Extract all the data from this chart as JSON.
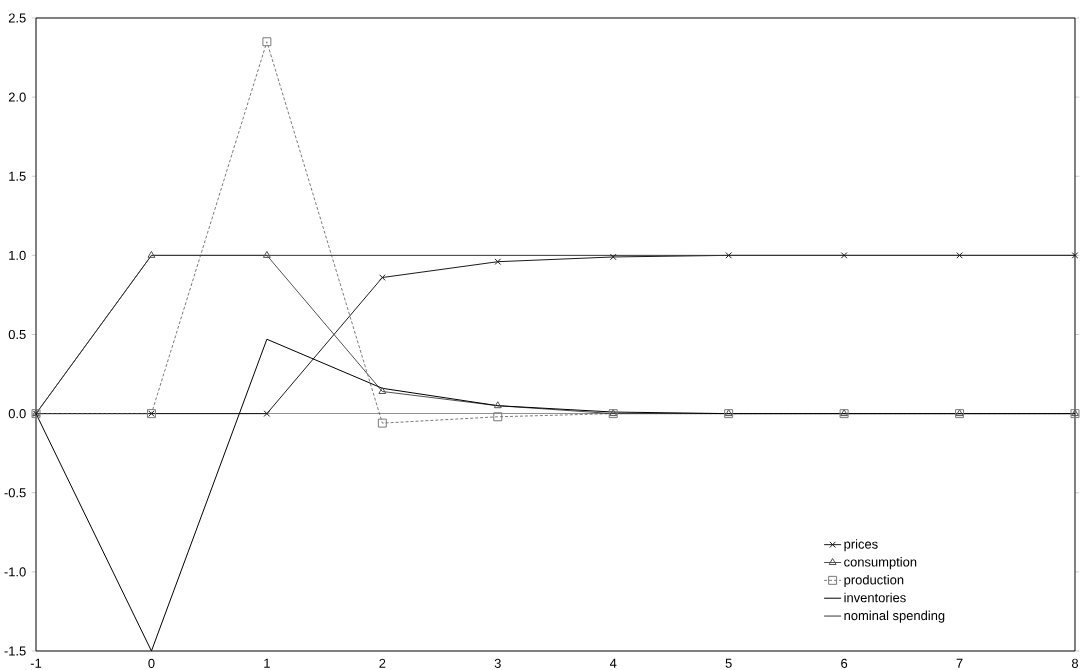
{
  "chart_data": {
    "type": "line",
    "x": [
      -1,
      0,
      1,
      2,
      3,
      4,
      5,
      6,
      7,
      8
    ],
    "series": [
      {
        "name": "prices",
        "color": "#1a1a1a",
        "marker": "cross",
        "line_style": "solid",
        "values": [
          0,
          0,
          0,
          0.86,
          0.96,
          0.99,
          1,
          1,
          1,
          1
        ]
      },
      {
        "name": "consumption",
        "color": "#505050",
        "marker": "triangle",
        "line_style": "solid",
        "values": [
          0,
          1,
          1,
          0.14,
          0.05,
          0,
          0,
          0,
          0,
          0
        ]
      },
      {
        "name": "production",
        "color": "#7a7a7a",
        "marker": "square",
        "line_style": "dotted",
        "values": [
          0,
          0,
          2.35,
          -0.06,
          -0.02,
          0,
          0,
          0,
          0,
          0
        ]
      },
      {
        "name": "inventories",
        "color": "#000000",
        "marker": "none",
        "line_style": "solid",
        "values": [
          0,
          -1.5,
          0.47,
          0.16,
          0.05,
          0.01,
          0,
          0,
          0,
          0
        ]
      },
      {
        "name": "nominal spending",
        "color": "#353535",
        "marker": "none",
        "line_style": "solid",
        "values": [
          0,
          1,
          1,
          1,
          1,
          1,
          1,
          1,
          1,
          1
        ]
      }
    ],
    "xlim": [
      -1,
      8
    ],
    "ylim": [
      -1.5,
      2.5
    ],
    "xticks": [
      -1,
      0,
      1,
      2,
      3,
      4,
      5,
      6,
      7,
      8
    ],
    "yticks": [
      {
        "value": -1.5,
        "label": "-1.5"
      },
      {
        "value": -1,
        "label": "-1.0"
      },
      {
        "value": -0.5,
        "label": "-0.5"
      },
      {
        "value": 0,
        "label": "0.0"
      },
      {
        "value": 0.5,
        "label": "0.5"
      },
      {
        "value": 1,
        "label": "1.0"
      },
      {
        "value": 1.5,
        "label": "1.5"
      },
      {
        "value": 2,
        "label": "2.0"
      },
      {
        "value": 2.5,
        "label": "2.5"
      }
    ],
    "ref_lines": [
      {
        "axis": "y",
        "value": 0,
        "color": "#000000"
      }
    ],
    "grid": false,
    "legend": "bottom right"
  }
}
